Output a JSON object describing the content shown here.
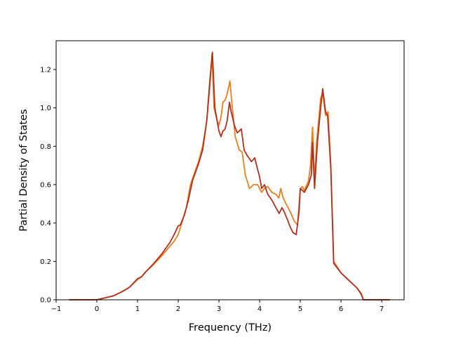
{
  "chart_data": {
    "type": "line",
    "title": "",
    "xlabel": "Frequency (THz)",
    "ylabel": "Partial Density of States",
    "xlim": [
      -1.0,
      7.55
    ],
    "ylim": [
      0.0,
      1.35
    ],
    "xticks": [
      -1,
      0,
      1,
      2,
      3,
      4,
      5,
      6,
      7
    ],
    "yticks": [
      0.0,
      0.2,
      0.4,
      0.6,
      0.8,
      1.0,
      1.2
    ],
    "xtick_labels": [
      "−1",
      "0",
      "1",
      "2",
      "3",
      "4",
      "5",
      "6",
      "7"
    ],
    "ytick_labels": [
      "0.0",
      "0.2",
      "0.4",
      "0.6",
      "0.8",
      "1.0",
      "1.2"
    ],
    "grid": false,
    "legend": "none",
    "series": [
      {
        "color": "#e67e22",
        "points": [
          [
            -0.68,
            0.0
          ],
          [
            0.0,
            0.0
          ],
          [
            0.2,
            0.01
          ],
          [
            0.4,
            0.02
          ],
          [
            0.6,
            0.04
          ],
          [
            0.8,
            0.065
          ],
          [
            1.0,
            0.105
          ],
          [
            1.1,
            0.12
          ],
          [
            1.2,
            0.145
          ],
          [
            1.4,
            0.185
          ],
          [
            1.6,
            0.23
          ],
          [
            1.8,
            0.28
          ],
          [
            1.9,
            0.305
          ],
          [
            2.0,
            0.34
          ],
          [
            2.1,
            0.41
          ],
          [
            2.2,
            0.48
          ],
          [
            2.3,
            0.6
          ],
          [
            2.4,
            0.66
          ],
          [
            2.5,
            0.72
          ],
          [
            2.6,
            0.8
          ],
          [
            2.7,
            0.93
          ],
          [
            2.78,
            1.12
          ],
          [
            2.83,
            1.28
          ],
          [
            2.88,
            1.0
          ],
          [
            2.96,
            0.93
          ],
          [
            3.0,
            0.91
          ],
          [
            3.05,
            0.95
          ],
          [
            3.1,
            1.03
          ],
          [
            3.15,
            1.04
          ],
          [
            3.2,
            1.07
          ],
          [
            3.27,
            1.14
          ],
          [
            3.33,
            1.0
          ],
          [
            3.4,
            0.85
          ],
          [
            3.5,
            0.78
          ],
          [
            3.57,
            0.77
          ],
          [
            3.65,
            0.65
          ],
          [
            3.75,
            0.58
          ],
          [
            3.85,
            0.6
          ],
          [
            3.95,
            0.6
          ],
          [
            4.0,
            0.58
          ],
          [
            4.05,
            0.56
          ],
          [
            4.12,
            0.58
          ],
          [
            4.2,
            0.59
          ],
          [
            4.3,
            0.56
          ],
          [
            4.4,
            0.55
          ],
          [
            4.47,
            0.53
          ],
          [
            4.52,
            0.58
          ],
          [
            4.58,
            0.53
          ],
          [
            4.65,
            0.5
          ],
          [
            4.75,
            0.46
          ],
          [
            4.85,
            0.41
          ],
          [
            4.93,
            0.39
          ],
          [
            5.0,
            0.58
          ],
          [
            5.05,
            0.59
          ],
          [
            5.1,
            0.57
          ],
          [
            5.2,
            0.62
          ],
          [
            5.25,
            0.7
          ],
          [
            5.3,
            0.9
          ],
          [
            5.35,
            0.62
          ],
          [
            5.4,
            0.82
          ],
          [
            5.5,
            1.05
          ],
          [
            5.55,
            1.08
          ],
          [
            5.62,
            0.96
          ],
          [
            5.68,
            0.98
          ],
          [
            5.75,
            0.7
          ],
          [
            5.82,
            0.2
          ],
          [
            6.0,
            0.14
          ],
          [
            6.2,
            0.1
          ],
          [
            6.4,
            0.06
          ],
          [
            6.5,
            0.025
          ],
          [
            6.55,
            0.0
          ],
          [
            7.2,
            0.0
          ]
        ]
      },
      {
        "color": "#b03020",
        "points": [
          [
            -0.68,
            0.0
          ],
          [
            0.0,
            0.0
          ],
          [
            0.2,
            0.01
          ],
          [
            0.4,
            0.02
          ],
          [
            0.6,
            0.04
          ],
          [
            0.8,
            0.065
          ],
          [
            1.0,
            0.11
          ],
          [
            1.1,
            0.12
          ],
          [
            1.2,
            0.145
          ],
          [
            1.4,
            0.19
          ],
          [
            1.6,
            0.24
          ],
          [
            1.8,
            0.3
          ],
          [
            1.9,
            0.34
          ],
          [
            2.0,
            0.385
          ],
          [
            2.05,
            0.39
          ],
          [
            2.15,
            0.44
          ],
          [
            2.25,
            0.52
          ],
          [
            2.35,
            0.62
          ],
          [
            2.5,
            0.71
          ],
          [
            2.6,
            0.78
          ],
          [
            2.7,
            0.93
          ],
          [
            2.78,
            1.15
          ],
          [
            2.84,
            1.29
          ],
          [
            2.9,
            1.0
          ],
          [
            2.95,
            0.94
          ],
          [
            3.0,
            0.88
          ],
          [
            3.05,
            0.85
          ],
          [
            3.1,
            0.88
          ],
          [
            3.15,
            0.89
          ],
          [
            3.2,
            0.93
          ],
          [
            3.26,
            1.03
          ],
          [
            3.3,
            0.98
          ],
          [
            3.38,
            0.91
          ],
          [
            3.45,
            0.87
          ],
          [
            3.5,
            0.88
          ],
          [
            3.55,
            0.89
          ],
          [
            3.62,
            0.78
          ],
          [
            3.7,
            0.75
          ],
          [
            3.8,
            0.72
          ],
          [
            3.88,
            0.74
          ],
          [
            3.95,
            0.68
          ],
          [
            4.0,
            0.64
          ],
          [
            4.05,
            0.58
          ],
          [
            4.12,
            0.6
          ],
          [
            4.2,
            0.55
          ],
          [
            4.3,
            0.52
          ],
          [
            4.4,
            0.48
          ],
          [
            4.48,
            0.45
          ],
          [
            4.55,
            0.48
          ],
          [
            4.6,
            0.46
          ],
          [
            4.68,
            0.42
          ],
          [
            4.75,
            0.38
          ],
          [
            4.82,
            0.35
          ],
          [
            4.9,
            0.34
          ],
          [
            4.97,
            0.46
          ],
          [
            5.0,
            0.58
          ],
          [
            5.05,
            0.57
          ],
          [
            5.1,
            0.56
          ],
          [
            5.2,
            0.6
          ],
          [
            5.27,
            0.65
          ],
          [
            5.3,
            0.82
          ],
          [
            5.35,
            0.58
          ],
          [
            5.42,
            0.82
          ],
          [
            5.5,
            1.0
          ],
          [
            5.55,
            1.1
          ],
          [
            5.62,
            0.98
          ],
          [
            5.67,
            0.96
          ],
          [
            5.75,
            0.68
          ],
          [
            5.82,
            0.19
          ],
          [
            6.0,
            0.14
          ],
          [
            6.2,
            0.1
          ],
          [
            6.4,
            0.06
          ],
          [
            6.5,
            0.03
          ],
          [
            6.55,
            0.0
          ],
          [
            7.2,
            0.0
          ]
        ]
      }
    ]
  }
}
